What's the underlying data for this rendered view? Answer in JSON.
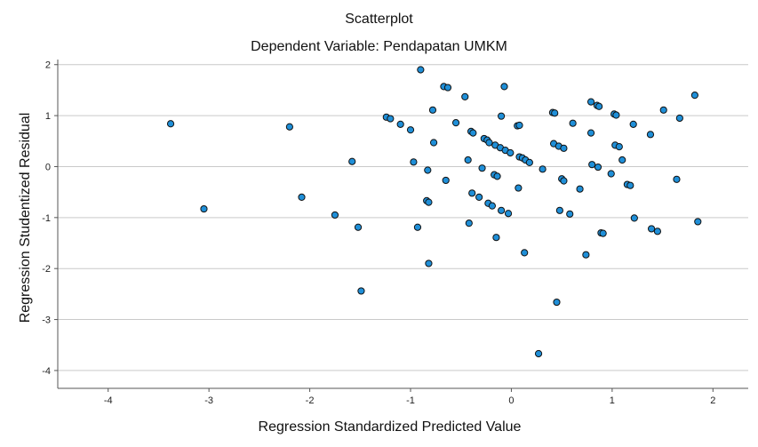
{
  "chart_data": {
    "type": "scatter",
    "title": "Scatterplot",
    "subtitle": "Dependent Variable: Pendapatan UMKM",
    "xlabel": "Regression Standardized Predicted Value",
    "ylabel": "Regression Studentized Residual",
    "xlim": [
      -4.5,
      2.35
    ],
    "ylim": [
      -4.35,
      2.1
    ],
    "xticks": [
      -4,
      -3,
      -2,
      -1,
      0,
      1,
      2
    ],
    "yticks": [
      -4,
      -3,
      -2,
      -1,
      0,
      1,
      2
    ],
    "grid": "horizontal",
    "point_color": "#1f8fd8",
    "point_edge_color": "#111111",
    "points": [
      {
        "x": -3.38,
        "y": 0.84
      },
      {
        "x": -3.05,
        "y": -0.83
      },
      {
        "x": -2.2,
        "y": 0.78
      },
      {
        "x": -2.08,
        "y": -0.6
      },
      {
        "x": -1.75,
        "y": -0.95
      },
      {
        "x": -1.58,
        "y": 0.1
      },
      {
        "x": -1.52,
        "y": -1.19
      },
      {
        "x": -1.49,
        "y": -2.44
      },
      {
        "x": -1.24,
        "y": 0.97
      },
      {
        "x": -1.2,
        "y": 0.94
      },
      {
        "x": -1.1,
        "y": 0.83
      },
      {
        "x": -1.0,
        "y": 0.72
      },
      {
        "x": -0.97,
        "y": 0.09
      },
      {
        "x": -0.93,
        "y": -1.19
      },
      {
        "x": -0.9,
        "y": 1.9
      },
      {
        "x": -0.83,
        "y": -0.07
      },
      {
        "x": -0.84,
        "y": -0.67
      },
      {
        "x": -0.82,
        "y": -0.7
      },
      {
        "x": -0.82,
        "y": -1.9
      },
      {
        "x": -0.78,
        "y": 1.11
      },
      {
        "x": -0.77,
        "y": 0.47
      },
      {
        "x": -0.67,
        "y": 1.57
      },
      {
        "x": -0.63,
        "y": 1.55
      },
      {
        "x": -0.65,
        "y": -0.27
      },
      {
        "x": -0.55,
        "y": 0.86
      },
      {
        "x": -0.46,
        "y": 1.37
      },
      {
        "x": -0.43,
        "y": 0.13
      },
      {
        "x": -0.42,
        "y": -1.11
      },
      {
        "x": -0.4,
        "y": 0.69
      },
      {
        "x": -0.38,
        "y": 0.66
      },
      {
        "x": -0.39,
        "y": -0.52
      },
      {
        "x": -0.32,
        "y": -0.6
      },
      {
        "x": -0.29,
        "y": -0.03
      },
      {
        "x": -0.27,
        "y": 0.55
      },
      {
        "x": -0.24,
        "y": 0.52
      },
      {
        "x": -0.23,
        "y": -0.72
      },
      {
        "x": -0.22,
        "y": 0.47
      },
      {
        "x": -0.19,
        "y": -0.77
      },
      {
        "x": -0.17,
        "y": -0.16
      },
      {
        "x": -0.14,
        "y": -0.19
      },
      {
        "x": -0.16,
        "y": 0.42
      },
      {
        "x": -0.15,
        "y": -1.39
      },
      {
        "x": -0.11,
        "y": 0.37
      },
      {
        "x": -0.1,
        "y": -0.86
      },
      {
        "x": -0.1,
        "y": 0.99
      },
      {
        "x": -0.07,
        "y": 1.57
      },
      {
        "x": -0.06,
        "y": 0.32
      },
      {
        "x": -0.03,
        "y": -0.92
      },
      {
        "x": -0.01,
        "y": 0.27
      },
      {
        "x": 0.06,
        "y": 0.8
      },
      {
        "x": 0.08,
        "y": 0.81
      },
      {
        "x": 0.08,
        "y": 0.19
      },
      {
        "x": 0.07,
        "y": -0.42
      },
      {
        "x": 0.11,
        "y": 0.17
      },
      {
        "x": 0.14,
        "y": 0.13
      },
      {
        "x": 0.13,
        "y": -1.69
      },
      {
        "x": 0.18,
        "y": 0.08
      },
      {
        "x": 0.31,
        "y": -0.05
      },
      {
        "x": 0.27,
        "y": -3.67
      },
      {
        "x": 0.41,
        "y": 1.06
      },
      {
        "x": 0.43,
        "y": 1.05
      },
      {
        "x": 0.42,
        "y": 0.45
      },
      {
        "x": 0.47,
        "y": 0.4
      },
      {
        "x": 0.45,
        "y": -2.66
      },
      {
        "x": 0.48,
        "y": -0.86
      },
      {
        "x": 0.5,
        "y": -0.24
      },
      {
        "x": 0.52,
        "y": 0.36
      },
      {
        "x": 0.52,
        "y": -0.28
      },
      {
        "x": 0.58,
        "y": -0.93
      },
      {
        "x": 0.61,
        "y": 0.85
      },
      {
        "x": 0.68,
        "y": -0.44
      },
      {
        "x": 0.74,
        "y": -1.73
      },
      {
        "x": 0.79,
        "y": 1.27
      },
      {
        "x": 0.79,
        "y": 0.66
      },
      {
        "x": 0.8,
        "y": 0.04
      },
      {
        "x": 0.85,
        "y": 1.2
      },
      {
        "x": 0.87,
        "y": 1.18
      },
      {
        "x": 0.86,
        "y": -0.01
      },
      {
        "x": 0.89,
        "y": -1.3
      },
      {
        "x": 0.91,
        "y": -1.31
      },
      {
        "x": 0.99,
        "y": -0.14
      },
      {
        "x": 1.02,
        "y": 1.03
      },
      {
        "x": 1.04,
        "y": 1.01
      },
      {
        "x": 1.03,
        "y": 0.42
      },
      {
        "x": 1.07,
        "y": 0.39
      },
      {
        "x": 1.1,
        "y": 0.13
      },
      {
        "x": 1.15,
        "y": -0.35
      },
      {
        "x": 1.18,
        "y": -0.37
      },
      {
        "x": 1.21,
        "y": 0.83
      },
      {
        "x": 1.22,
        "y": -1.01
      },
      {
        "x": 1.38,
        "y": 0.63
      },
      {
        "x": 1.39,
        "y": -1.22
      },
      {
        "x": 1.45,
        "y": -1.27
      },
      {
        "x": 1.51,
        "y": 1.11
      },
      {
        "x": 1.64,
        "y": -0.25
      },
      {
        "x": 1.67,
        "y": 0.95
      },
      {
        "x": 1.82,
        "y": 1.4
      },
      {
        "x": 1.85,
        "y": -1.08
      }
    ]
  }
}
